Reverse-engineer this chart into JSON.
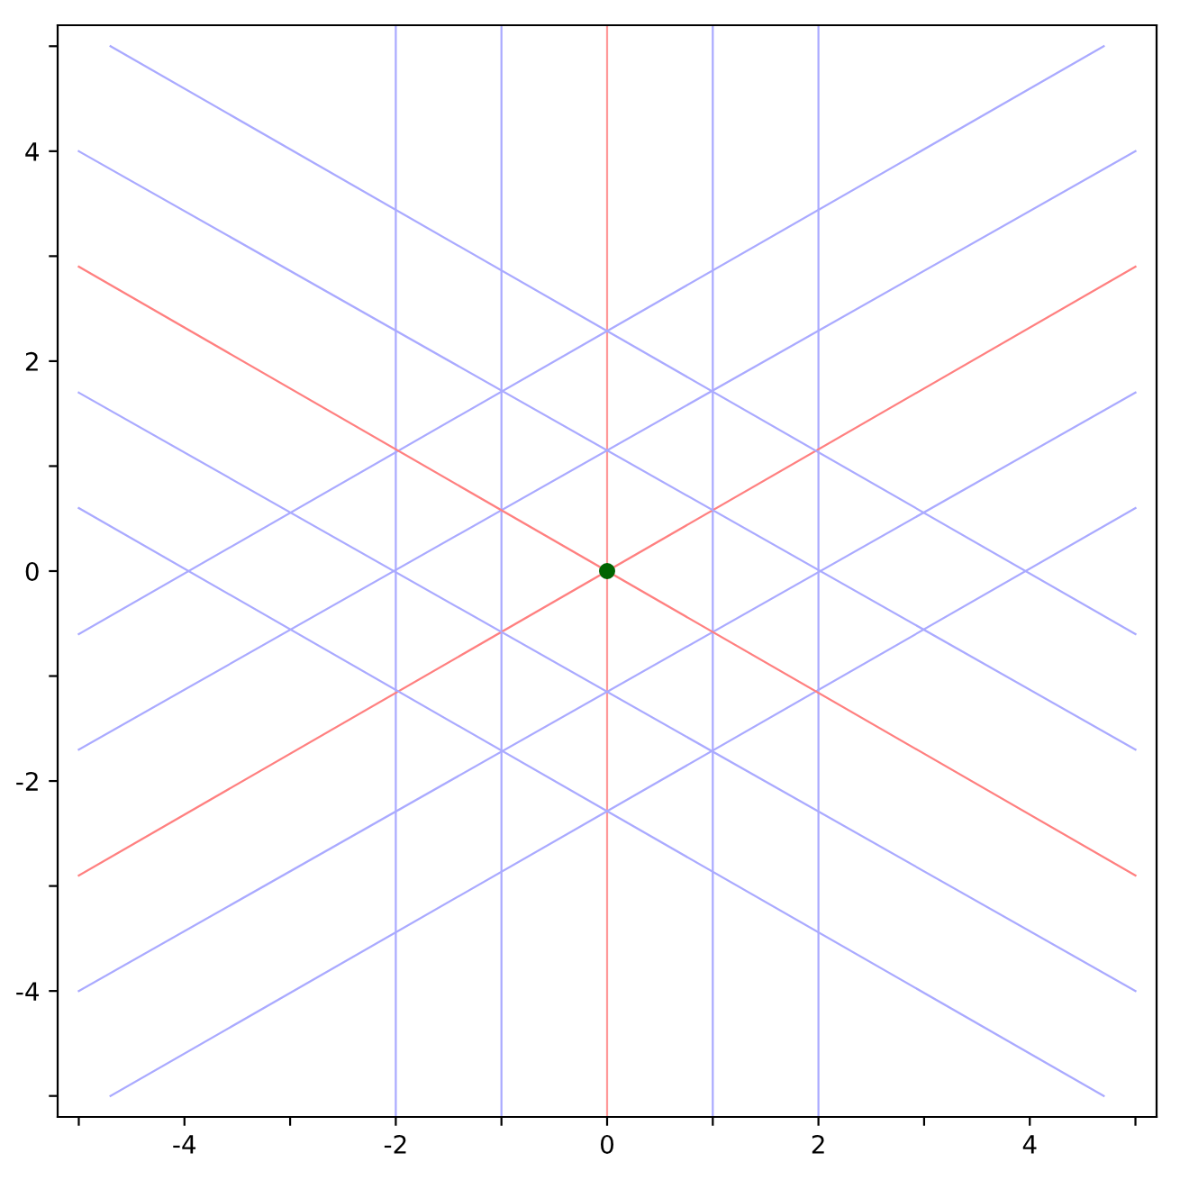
{
  "chart_data": {
    "type": "line",
    "xlim": [
      -5.2,
      5.2
    ],
    "ylim": [
      -5.2,
      5.2
    ],
    "xticks": [
      {
        "value": -5,
        "label": null
      },
      -4,
      {
        "value": -3,
        "label": null
      },
      -2,
      {
        "value": -1,
        "label": null
      },
      0,
      {
        "value": 1,
        "label": null
      },
      2,
      {
        "value": 3,
        "label": null
      },
      4,
      {
        "value": 5,
        "label": null
      }
    ],
    "yticks": [
      {
        "value": -5,
        "label": null
      },
      -4,
      {
        "value": -3,
        "label": null
      },
      -2,
      {
        "value": -1,
        "label": null
      },
      0,
      {
        "value": 1,
        "label": null
      },
      2,
      {
        "value": 3,
        "label": null
      },
      4,
      {
        "value": 5,
        "label": null
      }
    ],
    "line_style": "solid",
    "ref_lines": [
      {
        "axis": "x",
        "value": -2,
        "color": "#aaaaff"
      },
      {
        "axis": "x",
        "value": -1,
        "color": "#aaaaff"
      },
      {
        "axis": "x",
        "value": 0,
        "color": "#ff9999"
      },
      {
        "axis": "x",
        "value": 1,
        "color": "#aaaaff"
      },
      {
        "axis": "x",
        "value": 2,
        "color": "#aaaaff"
      }
    ],
    "series": [
      {
        "color": "#ff8080",
        "x": [
          -5,
          5
        ],
        "values": [
          -2.9,
          2.9
        ]
      },
      {
        "color": "#aaaaff",
        "x": [
          -5,
          5
        ],
        "values": [
          -1.7,
          4.0
        ]
      },
      {
        "color": "#aaaaff",
        "x": [
          -5,
          4.7
        ],
        "values": [
          -0.6,
          5
        ]
      },
      {
        "color": "#aaaaff",
        "x": [
          -5,
          5
        ],
        "values": [
          -4.0,
          1.7
        ]
      },
      {
        "color": "#aaaaff",
        "x": [
          -4.7,
          5
        ],
        "values": [
          -5,
          0.6
        ]
      },
      {
        "color": "#ff8080",
        "x": [
          -5,
          5
        ],
        "values": [
          2.9,
          -2.9
        ]
      },
      {
        "color": "#aaaaff",
        "x": [
          -5,
          5
        ],
        "values": [
          4.0,
          -1.7
        ]
      },
      {
        "color": "#aaaaff",
        "x": [
          -4.7,
          5
        ],
        "values": [
          5,
          -0.6
        ]
      },
      {
        "color": "#aaaaff",
        "x": [
          -5,
          5
        ],
        "values": [
          1.7,
          -4.0
        ]
      },
      {
        "color": "#aaaaff",
        "x": [
          -5,
          4.7
        ],
        "values": [
          0.6,
          -5
        ]
      },
      {
        "type": "scatter",
        "color": "#006400",
        "marker": "circle",
        "x": [
          0
        ],
        "values": [
          0
        ]
      }
    ]
  }
}
